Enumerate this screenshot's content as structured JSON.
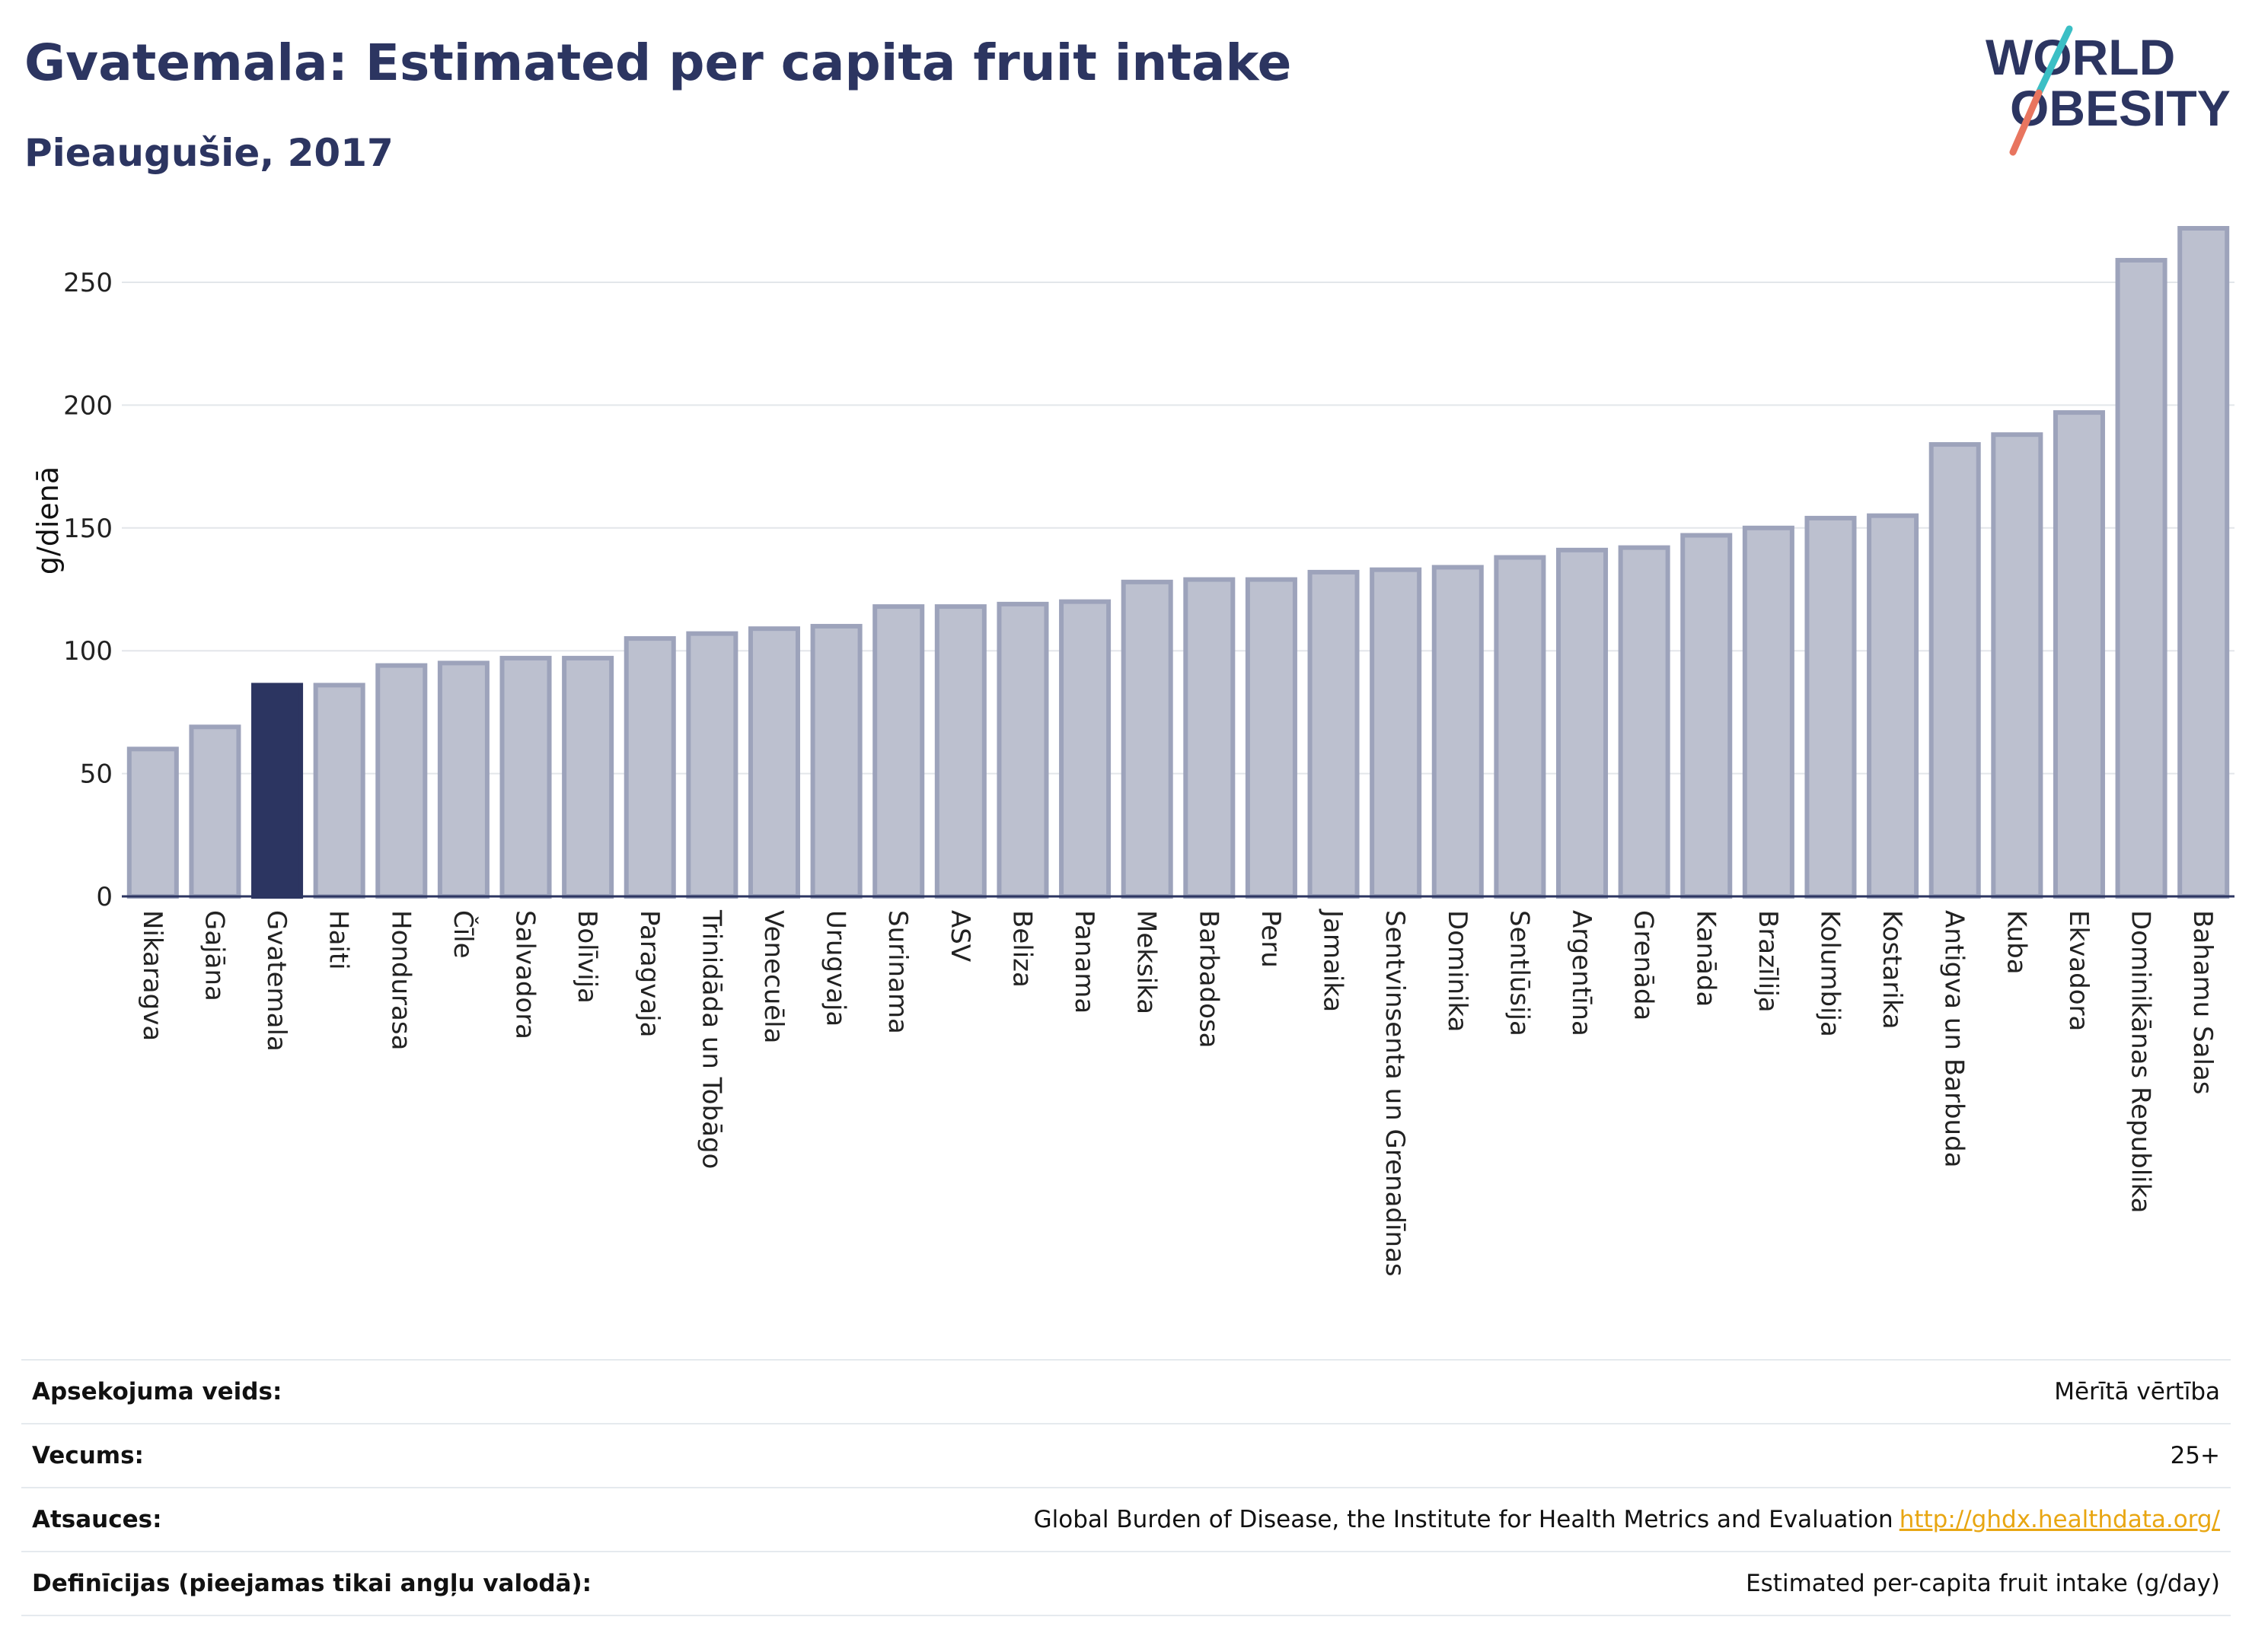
{
  "header": {
    "title": "Gvatemala: Estimated per capita fruit intake",
    "subtitle": "Pieaugušie, 2017",
    "logo_line1": "WORLD",
    "logo_line2": "OBESITY"
  },
  "colors": {
    "bar": "#bcc0cf",
    "bar_edge": "#9da3bb",
    "highlight": "#2c3561",
    "logo_text": "#2c3561",
    "logo_teal": "#3bbfc5",
    "logo_coral": "#e8755f"
  },
  "chart_data": {
    "type": "bar",
    "title": "Gvatemala: Estimated per capita fruit intake",
    "subtitle": "Pieaugušie, 2017",
    "ylabel": "g/dienā",
    "xlabel": "",
    "ylim": [
      0,
      272
    ],
    "yticks": [
      0,
      50,
      100,
      150,
      200,
      250
    ],
    "grid": true,
    "highlight": "Gvatemala",
    "categories": [
      "Nikaragva",
      "Gajāna",
      "Gvatemala",
      "Haiti",
      "Hondurasa",
      "Čīle",
      "Salvadora",
      "Bolīvija",
      "Paragvaja",
      "Trinidāda un Tobāgo",
      "Venecuēla",
      "Urugvaja",
      "Surinama",
      "ASV",
      "Beliza",
      "Panama",
      "Meksika",
      "Barbadosa",
      "Peru",
      "Jamaika",
      "Sentvinsenta un Grenadīnas",
      "Dominika",
      "Sentlūsija",
      "Argentīna",
      "Grenāda",
      "Kanāda",
      "Brazīlija",
      "Kolumbija",
      "Kostarika",
      "Antigva un Barbuda",
      "Kuba",
      "Ekvadora",
      "Dominikānas Republika",
      "Bahamu Salas"
    ],
    "values": [
      60,
      69,
      86,
      86,
      94,
      95,
      97,
      97,
      105,
      107,
      109,
      110,
      118,
      118,
      119,
      120,
      128,
      129,
      129,
      132,
      133,
      134,
      138,
      141,
      142,
      147,
      150,
      154,
      155,
      184,
      188,
      197,
      259,
      272
    ]
  },
  "meta": [
    {
      "label": "Apsekojuma veids:",
      "value": "Mērītā vērtība",
      "link": ""
    },
    {
      "label": "Vecums:",
      "value": "25+",
      "link": ""
    },
    {
      "label": "Atsauces:",
      "value": "Global Burden of Disease, the Institute for Health Metrics and Evaluation",
      "link": "http://ghdx.healthdata.org/"
    },
    {
      "label": "Definīcijas (pieejamas tikai angļu valodā):",
      "value": "Estimated per-capita fruit intake (g/day)",
      "link": ""
    }
  ]
}
